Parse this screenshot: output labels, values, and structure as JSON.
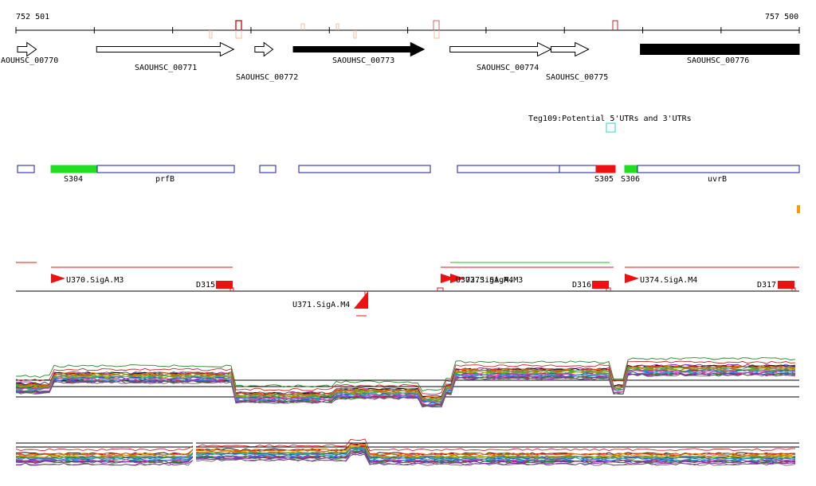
{
  "ruler": {
    "start_label": "752 501",
    "end_label": "757 500",
    "start_bp": 752501,
    "end_bp": 757500,
    "tick_positions_bp": [
      752501,
      753001,
      753501,
      754001,
      754501,
      755001,
      755501,
      756001,
      756501,
      757001,
      757500
    ]
  },
  "genes": [
    {
      "id": "gene-0770",
      "label": "AOUHSC_00770",
      "strand": "+",
      "style": "open",
      "start_bp": 752511,
      "end_bp": 752631
    },
    {
      "id": "gene-0771",
      "label": "SAOUHSC_00771",
      "strand": "+",
      "style": "open",
      "start_bp": 753016,
      "end_bp": 753891
    },
    {
      "id": "gene-0772",
      "label": "SAOUHSC_00772",
      "strand": "+",
      "style": "open",
      "start_bp": 754026,
      "end_bp": 754141
    },
    {
      "id": "gene-0773",
      "label": "SAOUHSC_00773",
      "strand": "+",
      "style": "filled",
      "start_bp": 754271,
      "end_bp": 755106
    },
    {
      "id": "gene-0774",
      "label": "SAOUHSC_00774",
      "strand": "+",
      "style": "open",
      "start_bp": 755271,
      "end_bp": 755916
    },
    {
      "id": "gene-0775",
      "label": "SAOUHSC_00775",
      "strand": "+",
      "style": "open",
      "start_bp": 755916,
      "end_bp": 756156
    },
    {
      "id": "gene-0776",
      "label": "SAOUHSC_00776",
      "strand": "+",
      "style": "filled",
      "start_bp": 756486,
      "end_bp": 757500
    }
  ],
  "teg": {
    "label": "Teg109:Potential 5'UTRs and 3'UTRs",
    "color": "#33cccc"
  },
  "transcripts": {
    "items": [
      {
        "label": "S304",
        "color": "#22dd22"
      },
      {
        "label": "prfB",
        "color": "#1a1aaa"
      },
      {
        "label": "S305",
        "color": "#ee1111"
      },
      {
        "label": "S306",
        "color": "#22dd22"
      },
      {
        "label": "uvrB",
        "color": "#1a1aaa"
      }
    ]
  },
  "promoters": [
    {
      "label": "U370.SigA.M3",
      "strand": "+"
    },
    {
      "label": "D315",
      "strand": "+"
    },
    {
      "label": "U371.SigA.M4",
      "strand": "-"
    },
    {
      "label": "U372.SigA.M4",
      "strand": "+"
    },
    {
      "label": "U373.SigA.M3",
      "strand": "+"
    },
    {
      "label": "D316",
      "strand": "+"
    },
    {
      "label": "U374.SigA.M4",
      "strand": "+"
    },
    {
      "label": "D317",
      "strand": "+"
    }
  ],
  "colors": {
    "gene_outline": "#000000",
    "transcript_outline": "#1a1aaa",
    "promoter": "#ee1111",
    "terminator_line": "#22bb22",
    "marker_orange": "#ff9900"
  }
}
